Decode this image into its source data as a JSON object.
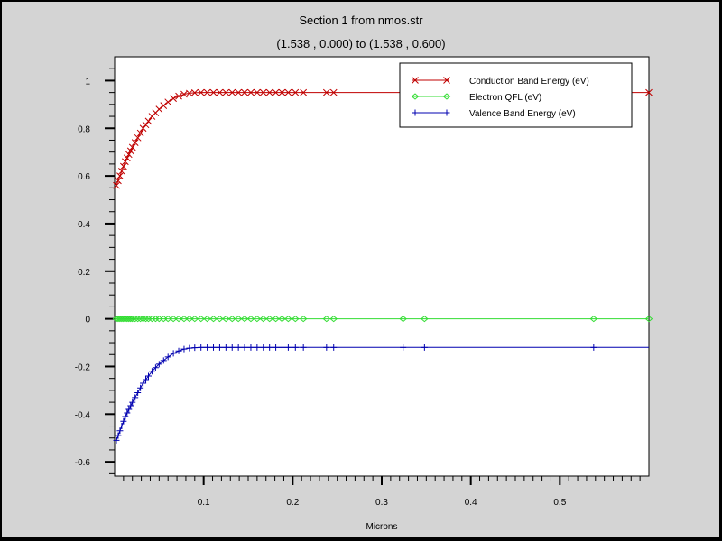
{
  "chart_data": {
    "type": "line",
    "title": "Section 1 from nmos.str",
    "subtitle": "(1.538 , 0.000) to (1.538 , 0.600)",
    "xlabel": "Microns",
    "ylabel": "",
    "xlim": [
      0.0,
      0.6
    ],
    "ylim": [
      -0.66,
      1.1
    ],
    "grid": false,
    "legend_position": "top-right",
    "xticks": [
      0.1,
      0.2,
      0.3,
      0.4,
      0.5
    ],
    "xtick_labels": [
      "0.1",
      "0.2",
      "0.3",
      "0.4",
      "0.5"
    ],
    "yticks": [
      -0.6,
      -0.4,
      -0.2,
      0,
      0.2,
      0.4,
      0.6,
      0.8,
      1
    ],
    "ytick_labels": [
      "-0.6",
      "-0.4",
      "-0.2",
      "0",
      "0.2",
      "0.4",
      "0.6",
      "0.8",
      "1"
    ],
    "x": [
      0.002,
      0.004,
      0.006,
      0.008,
      0.01,
      0.012,
      0.014,
      0.016,
      0.018,
      0.02,
      0.023,
      0.026,
      0.029,
      0.032,
      0.035,
      0.038,
      0.042,
      0.046,
      0.05,
      0.055,
      0.06,
      0.066,
      0.072,
      0.078,
      0.084,
      0.09,
      0.097,
      0.104,
      0.111,
      0.118,
      0.125,
      0.132,
      0.139,
      0.146,
      0.153,
      0.16,
      0.167,
      0.174,
      0.181,
      0.188,
      0.195,
      0.203,
      0.212,
      0.238,
      0.246,
      0.324,
      0.348,
      0.538,
      0.6
    ],
    "series": [
      {
        "name": "Conduction Band Energy (eV)",
        "color": "#c00000",
        "marker": "x",
        "values": [
          0.56,
          0.58,
          0.6,
          0.62,
          0.64,
          0.66,
          0.675,
          0.69,
          0.705,
          0.72,
          0.74,
          0.76,
          0.78,
          0.8,
          0.815,
          0.83,
          0.85,
          0.865,
          0.88,
          0.895,
          0.91,
          0.925,
          0.935,
          0.943,
          0.947,
          0.949,
          0.95,
          0.95,
          0.95,
          0.95,
          0.95,
          0.95,
          0.95,
          0.95,
          0.95,
          0.95,
          0.95,
          0.95,
          0.95,
          0.95,
          0.95,
          0.95,
          0.95,
          0.95,
          0.95,
          0.95,
          0.95,
          0.95,
          0.95
        ],
        "marker_indices": [
          0,
          1,
          2,
          3,
          4,
          5,
          6,
          7,
          8,
          9,
          10,
          11,
          12,
          13,
          14,
          15,
          16,
          17,
          18,
          19,
          20,
          21,
          22,
          23,
          24,
          25,
          26,
          27,
          28,
          29,
          30,
          31,
          32,
          33,
          34,
          35,
          36,
          37,
          38,
          39,
          40,
          41,
          42,
          43,
          44,
          48
        ]
      },
      {
        "name": "Electron QFL (eV)",
        "color": "#33dd33",
        "marker": "diamond",
        "values": [
          0,
          0,
          0,
          0,
          0,
          0,
          0,
          0,
          0,
          0,
          0,
          0,
          0,
          0,
          0,
          0,
          0,
          0,
          0,
          0,
          0,
          0,
          0,
          0,
          0,
          0,
          0,
          0,
          0,
          0,
          0,
          0,
          0,
          0,
          0,
          0,
          0,
          0,
          0,
          0,
          0,
          0,
          0,
          0,
          0,
          0,
          0,
          0,
          0
        ],
        "marker_indices": [
          0,
          1,
          2,
          3,
          4,
          5,
          6,
          7,
          8,
          9,
          10,
          11,
          12,
          13,
          14,
          15,
          16,
          17,
          18,
          19,
          20,
          21,
          22,
          23,
          24,
          25,
          26,
          27,
          28,
          29,
          30,
          31,
          32,
          33,
          34,
          35,
          36,
          37,
          38,
          39,
          40,
          41,
          42,
          43,
          44,
          45,
          46,
          47,
          48
        ]
      },
      {
        "name": "Valence Band Energy (eV)",
        "color": "#0000b0",
        "marker": "plus",
        "values": [
          -0.51,
          -0.49,
          -0.47,
          -0.45,
          -0.43,
          -0.41,
          -0.395,
          -0.38,
          -0.365,
          -0.35,
          -0.33,
          -0.31,
          -0.29,
          -0.27,
          -0.255,
          -0.24,
          -0.22,
          -0.205,
          -0.19,
          -0.175,
          -0.16,
          -0.145,
          -0.135,
          -0.127,
          -0.123,
          -0.121,
          -0.12,
          -0.12,
          -0.12,
          -0.12,
          -0.12,
          -0.12,
          -0.12,
          -0.12,
          -0.12,
          -0.12,
          -0.12,
          -0.12,
          -0.12,
          -0.12,
          -0.12,
          -0.12,
          -0.12,
          -0.12,
          -0.12,
          -0.12,
          -0.12,
          -0.12,
          -0.12
        ],
        "marker_indices": [
          0,
          1,
          2,
          3,
          4,
          5,
          6,
          7,
          8,
          9,
          10,
          11,
          12,
          13,
          14,
          15,
          16,
          17,
          18,
          19,
          20,
          21,
          22,
          23,
          24,
          25,
          26,
          27,
          28,
          29,
          30,
          31,
          32,
          33,
          34,
          35,
          36,
          37,
          38,
          39,
          40,
          41,
          42,
          43,
          44,
          45,
          46,
          47
        ]
      }
    ]
  }
}
